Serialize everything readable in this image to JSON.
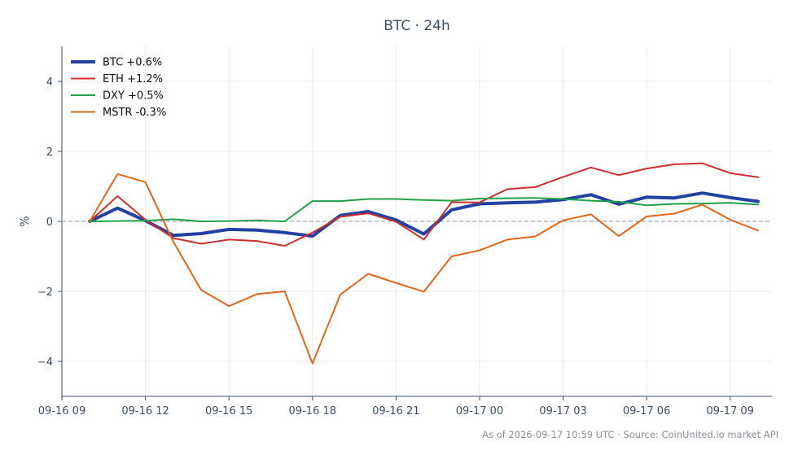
{
  "chart_data": {
    "type": "line",
    "title": "BTC · 24h",
    "xlabel": "",
    "ylabel": "%",
    "ylim": [
      -5,
      5
    ],
    "xlim": [
      "2026-09-16 09:00",
      "2026-09-17 10:30"
    ],
    "x_ticks": [
      "09-16 09",
      "09-16 12",
      "09-16 15",
      "09-16 18",
      "09-16 21",
      "09-17 00",
      "09-17 03",
      "09-17 06",
      "09-17 09"
    ],
    "y_ticks": [
      -4,
      -2,
      0,
      2,
      4
    ],
    "y_tick_labels": [
      "−4",
      "−2",
      "0",
      "2",
      "4"
    ],
    "grid": true,
    "zero_line": 0,
    "legend_position": "top-left",
    "x": [
      "2026-09-16 10:00",
      "2026-09-16 11:00",
      "2026-09-16 12:00",
      "2026-09-16 13:00",
      "2026-09-16 14:00",
      "2026-09-16 15:00",
      "2026-09-16 16:00",
      "2026-09-16 17:00",
      "2026-09-16 18:00",
      "2026-09-16 19:00",
      "2026-09-16 20:00",
      "2026-09-16 21:00",
      "2026-09-16 22:00",
      "2026-09-16 23:00",
      "2026-09-17 00:00",
      "2026-09-17 01:00",
      "2026-09-17 02:00",
      "2026-09-17 03:00",
      "2026-09-17 04:00",
      "2026-09-17 05:00",
      "2026-09-17 06:00",
      "2026-09-17 07:00",
      "2026-09-17 08:00",
      "2026-09-17 09:00",
      "2026-09-17 10:00"
    ],
    "series": [
      {
        "name": "BTC +0.6%",
        "color": "#2142a1",
        "width": 4,
        "values": [
          0.0,
          0.38,
          0.02,
          -0.4,
          -0.35,
          -0.23,
          -0.25,
          -0.32,
          -0.42,
          0.17,
          0.28,
          0.04,
          -0.36,
          0.33,
          0.5,
          0.53,
          0.55,
          0.62,
          0.76,
          0.49,
          0.69,
          0.67,
          0.81,
          0.68,
          0.57
        ]
      },
      {
        "name": "ETH +1.2%",
        "color": "#cf2e2e",
        "width": 2,
        "values": [
          0.0,
          0.72,
          0.05,
          -0.48,
          -0.64,
          -0.52,
          -0.56,
          -0.7,
          -0.32,
          0.13,
          0.23,
          -0.01,
          -0.52,
          0.55,
          0.54,
          0.92,
          0.98,
          1.27,
          1.54,
          1.32,
          1.51,
          1.63,
          1.66,
          1.38,
          1.26
        ]
      },
      {
        "name": "DXY +0.5%",
        "color": "#22a04b",
        "width": 2,
        "values": [
          0.0,
          0.01,
          0.02,
          0.06,
          0.0,
          0.01,
          0.03,
          0.0,
          0.58,
          0.58,
          0.64,
          0.64,
          0.61,
          0.59,
          0.65,
          0.66,
          0.67,
          0.64,
          0.59,
          0.56,
          0.46,
          0.5,
          0.51,
          0.53,
          0.48
        ]
      },
      {
        "name": "MSTR -0.3%",
        "color": "#e0661b",
        "width": 2,
        "values": [
          0.0,
          1.35,
          1.12,
          -0.58,
          -1.96,
          -2.42,
          -2.08,
          -2.0,
          -4.06,
          -2.09,
          -1.5,
          -1.76,
          -2.01,
          -1.0,
          -0.83,
          -0.52,
          -0.43,
          0.03,
          0.2,
          -0.42,
          0.14,
          0.22,
          0.48,
          0.05,
          -0.26
        ]
      }
    ],
    "footer": "As of 2026-09-17 10:59 UTC · Source: CoinUnited.io market API"
  }
}
